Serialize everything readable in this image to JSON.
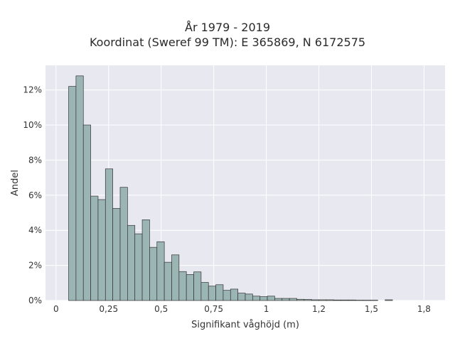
{
  "title_line1": "År 1979 - 2019",
  "title_line2": "Koordinat (Sweref 99 TM): E 365869, N 6172575",
  "colors": {
    "plot_bg": "#e8e8f0",
    "grid": "#ffffff",
    "bar_fill": "#9bb5b4",
    "bar_edge": "#333333"
  },
  "chart_data": {
    "type": "bar",
    "xlabel": "Signifikant våghöjd (m)",
    "ylabel": "Andel",
    "xlim": [
      -0.05,
      1.85
    ],
    "ylim": [
      0,
      0.134
    ],
    "xticks": [
      0,
      0.25,
      0.5,
      0.75,
      1,
      1.25,
      1.5,
      1.75
    ],
    "xtick_labels": [
      "0",
      "0,25",
      "0,5",
      "0,75",
      "1",
      "1,2",
      "1,5",
      "1,8"
    ],
    "yticks": [
      0,
      0.02,
      0.04,
      0.06,
      0.08,
      0.1,
      0.12
    ],
    "ytick_labels": [
      "0%",
      "2%",
      "4%",
      "6%",
      "8%",
      "10%",
      "12%"
    ],
    "bin_width": 0.035,
    "bins": [
      [
        0.06,
        0.122
      ],
      [
        0.095,
        0.128
      ],
      [
        0.13,
        0.1
      ],
      [
        0.165,
        0.0595
      ],
      [
        0.2,
        0.0575
      ],
      [
        0.235,
        0.075
      ],
      [
        0.27,
        0.0525
      ],
      [
        0.305,
        0.0645
      ],
      [
        0.34,
        0.0428
      ],
      [
        0.375,
        0.038
      ],
      [
        0.41,
        0.046
      ],
      [
        0.445,
        0.0303
      ],
      [
        0.48,
        0.0335
      ],
      [
        0.515,
        0.0218
      ],
      [
        0.55,
        0.026
      ],
      [
        0.585,
        0.0165
      ],
      [
        0.62,
        0.0148
      ],
      [
        0.655,
        0.0163
      ],
      [
        0.69,
        0.0103
      ],
      [
        0.725,
        0.0082
      ],
      [
        0.76,
        0.009
      ],
      [
        0.795,
        0.0058
      ],
      [
        0.83,
        0.0065
      ],
      [
        0.865,
        0.0042
      ],
      [
        0.9,
        0.0037
      ],
      [
        0.935,
        0.0025
      ],
      [
        0.97,
        0.0022
      ],
      [
        1.005,
        0.0025
      ],
      [
        1.04,
        0.0012
      ],
      [
        1.075,
        0.0012
      ],
      [
        1.11,
        0.0012
      ],
      [
        1.145,
        0.0007
      ],
      [
        1.18,
        0.0006
      ],
      [
        1.215,
        0.0004
      ],
      [
        1.25,
        0.0004
      ],
      [
        1.285,
        0.0004
      ],
      [
        1.32,
        0.0003
      ],
      [
        1.355,
        0.0003
      ],
      [
        1.39,
        0.0003
      ],
      [
        1.425,
        0.0002
      ],
      [
        1.46,
        0.0002
      ],
      [
        1.495,
        0.0002
      ],
      [
        1.565,
        0.0004
      ]
    ]
  }
}
